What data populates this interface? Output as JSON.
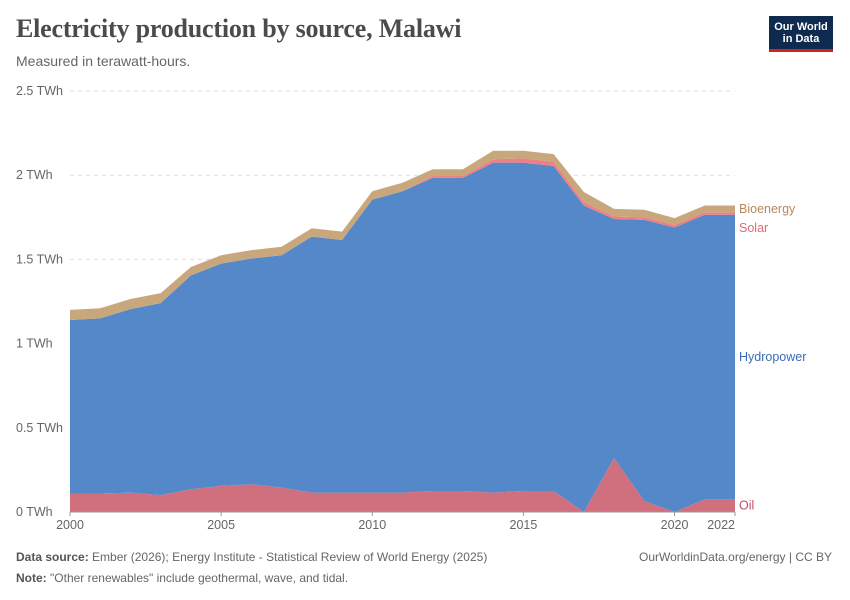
{
  "header": {
    "title": "Electricity production by source, Malawi",
    "subtitle": "Measured in terawatt-hours."
  },
  "logo": {
    "line1": "Our World",
    "line2": "in Data"
  },
  "footer": {
    "source_label": "Data source:",
    "source_text": "Ember (2026); Energy Institute - Statistical Review of World Energy (2025)",
    "url_text": "OurWorldinData.org/energy | CC BY",
    "note_label": "Note:",
    "note_text": "\"Other renewables\" include geothermal, wave, and tidal."
  },
  "chart_data": {
    "type": "area",
    "stacked": true,
    "title": "Electricity production by source, Malawi",
    "subtitle": "Measured in terawatt-hours.",
    "xlabel": "",
    "ylabel": "",
    "x": [
      2000,
      2001,
      2002,
      2003,
      2004,
      2005,
      2006,
      2007,
      2008,
      2009,
      2010,
      2011,
      2012,
      2013,
      2014,
      2015,
      2016,
      2017,
      2018,
      2019,
      2020,
      2021,
      2022
    ],
    "ylim": [
      0,
      2.5
    ],
    "y_ticks": [
      {
        "value": 0,
        "label": "0 TWh"
      },
      {
        "value": 0.5,
        "label": "0.5 TWh"
      },
      {
        "value": 1,
        "label": "1 TWh"
      },
      {
        "value": 1.5,
        "label": "1.5 TWh"
      },
      {
        "value": 2,
        "label": "2 TWh"
      },
      {
        "value": 2.5,
        "label": "2.5 TWh"
      }
    ],
    "x_ticks": [
      2000,
      2005,
      2010,
      2015,
      2020,
      2022
    ],
    "grid": true,
    "legend_placement": "right (inline labels)",
    "series": [
      {
        "name": "Oil",
        "color": "#d0707e",
        "values": [
          0.11,
          0.11,
          0.115,
          0.1,
          0.135,
          0.155,
          0.165,
          0.145,
          0.115,
          0.115,
          0.115,
          0.115,
          0.125,
          0.125,
          0.115,
          0.125,
          0.125,
          0.0,
          0.32,
          0.065,
          0.0,
          0.075,
          0.075
        ]
      },
      {
        "name": "Hydropower",
        "color": "#5488c9",
        "values": [
          1.03,
          1.04,
          1.09,
          1.14,
          1.27,
          1.32,
          1.34,
          1.38,
          1.52,
          1.5,
          1.74,
          1.79,
          1.86,
          1.86,
          1.96,
          1.95,
          1.93,
          1.82,
          1.42,
          1.67,
          1.69,
          1.69,
          1.69
        ]
      },
      {
        "name": "Solar",
        "color": "#ee7f82",
        "values": [
          0,
          0,
          0,
          0,
          0,
          0,
          0,
          0,
          0,
          0,
          0,
          0,
          0.01,
          0.01,
          0.02,
          0.025,
          0.025,
          0.02,
          0.015,
          0.015,
          0.015,
          0.015,
          0.015
        ]
      },
      {
        "name": "Bioenergy",
        "color": "#c9a77d",
        "values": [
          0.06,
          0.06,
          0.06,
          0.06,
          0.05,
          0.05,
          0.05,
          0.05,
          0.05,
          0.05,
          0.05,
          0.05,
          0.04,
          0.04,
          0.05,
          0.045,
          0.045,
          0.06,
          0.045,
          0.045,
          0.04,
          0.04,
          0.04
        ]
      }
    ]
  }
}
